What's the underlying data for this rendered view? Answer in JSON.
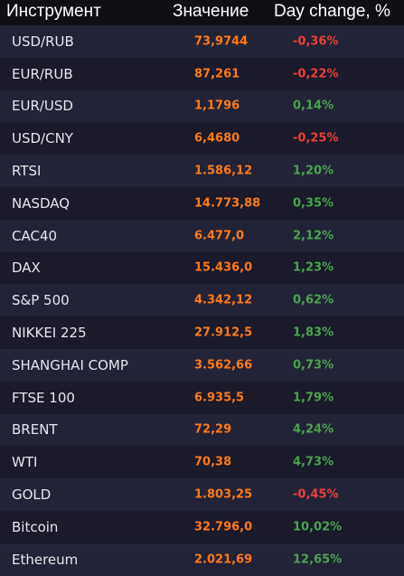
{
  "header": {
    "name_label": "Инструмент",
    "value_label": "Значение",
    "change_label": "Day change, %"
  },
  "colors": {
    "value": "#ff7a1a",
    "negative": "#e8403a",
    "positive": "#4aa24e"
  },
  "rows": [
    {
      "name": "USD/RUB",
      "value": "73,9744",
      "change": "-0,36%",
      "direction": "negative"
    },
    {
      "name": "EUR/RUB",
      "value": "87,261",
      "change": "-0,22%",
      "direction": "negative"
    },
    {
      "name": "EUR/USD",
      "value": "1,1796",
      "change": "0,14%",
      "direction": "positive"
    },
    {
      "name": "USD/CNY",
      "value": "6,4680",
      "change": "-0,25%",
      "direction": "negative"
    },
    {
      "name": "RTSI",
      "value": "1.586,12",
      "change": "1,20%",
      "direction": "positive"
    },
    {
      "name": "NASDAQ",
      "value": "14.773,88",
      "change": "0,35%",
      "direction": "positive"
    },
    {
      "name": "CAC40",
      "value": "6.477,0",
      "change": "2,12%",
      "direction": "positive"
    },
    {
      "name": "DAX",
      "value": "15.436,0",
      "change": "1,23%",
      "direction": "positive"
    },
    {
      "name": "S&P 500",
      "value": "4.342,12",
      "change": "0,62%",
      "direction": "positive"
    },
    {
      "name": "NIKKEI 225",
      "value": "27.912,5",
      "change": "1,83%",
      "direction": "positive"
    },
    {
      "name": "SHANGHAI COMP",
      "value": "3.562,66",
      "change": "0,73%",
      "direction": "positive"
    },
    {
      "name": "FTSE 100",
      "value": "6.935,5",
      "change": "1,79%",
      "direction": "positive"
    },
    {
      "name": "BRENT",
      "value": "72,29",
      "change": "4,24%",
      "direction": "positive"
    },
    {
      "name": "WTI",
      "value": "70,38",
      "change": "4,73%",
      "direction": "positive"
    },
    {
      "name": "GOLD",
      "value": "1.803,25",
      "change": "-0,45%",
      "direction": "negative"
    },
    {
      "name": "Bitcoin",
      "value": "32.796,0",
      "change": "10,02%",
      "direction": "positive"
    },
    {
      "name": "Ethereum",
      "value": "2.021,69",
      "change": "12,65%",
      "direction": "positive"
    }
  ]
}
